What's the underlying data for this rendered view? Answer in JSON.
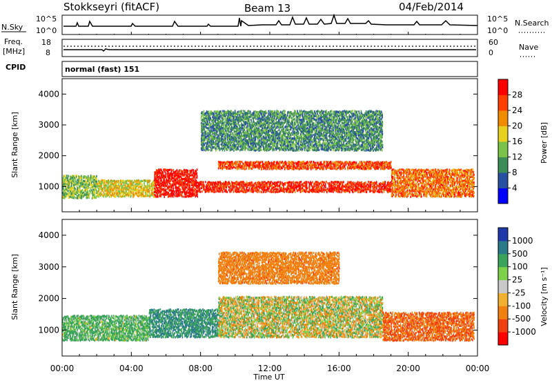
{
  "header": {
    "station": "Stokkseyri (fitACF)",
    "beam": "Beam 13",
    "date": "04/Feb/2014"
  },
  "noise_panel": {
    "left_label": "N.Sky",
    "right_label": "N.Search",
    "left_ticks": [
      "10^5",
      "10^0"
    ],
    "right_ticks": [
      "10^5",
      "10^0"
    ]
  },
  "freq_panel": {
    "left_label_1": "Freq.",
    "left_label_2": "[MHz]",
    "right_label": "Nave",
    "left_ticks": [
      "18",
      "8"
    ],
    "right_ticks": [
      "60",
      "0"
    ]
  },
  "cpid_panel": {
    "label": "CPID",
    "value": "normal (fast) 151"
  },
  "power_panel": {
    "ylabel": "Slant Range [km]",
    "yticks": [
      "4000",
      "3000",
      "2000",
      "1000"
    ],
    "colorbar_label": "Power [dB]",
    "colorbar_ticks": [
      "28",
      "24",
      "20",
      "16",
      "12",
      "8",
      "4"
    ],
    "colors": [
      "#0000ff",
      "#2850a0",
      "#3c8c5a",
      "#7ac24a",
      "#e8d020",
      "#f08c00",
      "#ff4000",
      "#ff0000"
    ]
  },
  "velocity_panel": {
    "ylabel": "Slant Range [km]",
    "yticks": [
      "4000",
      "3000",
      "2000",
      "1000"
    ],
    "colorbar_label": "Velocity [m s⁻¹]",
    "colorbar_ticks": [
      "1000",
      "500",
      "100",
      "25",
      "-25",
      "-100",
      "-500",
      "-1000"
    ],
    "colors": [
      "#1f3aa8",
      "#2a7a8a",
      "#3aa25a",
      "#7cd04a",
      "#c8c8c8",
      "#f0b030",
      "#f08010",
      "#f04010",
      "#ff0000"
    ]
  },
  "xaxis": {
    "label": "Time UT",
    "ticks": [
      "00:00",
      "04:00",
      "08:00",
      "12:00",
      "16:00",
      "20:00",
      "00:00"
    ]
  },
  "chart_data": [
    {
      "type": "heatmap",
      "title": "Power",
      "x_range_hours": [
        0,
        24
      ],
      "y_range_km": [
        180,
        4500
      ],
      "colorbar_range_db": [
        0,
        32
      ],
      "bands": [
        {
          "t_start": 0.0,
          "t_end": 2.0,
          "range_lo_km": 650,
          "range_hi_km": 1400,
          "value_db": 14
        },
        {
          "t_start": 2.0,
          "t_end": 5.3,
          "range_lo_km": 700,
          "range_hi_km": 1250,
          "value_db": 18
        },
        {
          "t_start": 5.3,
          "t_end": 7.8,
          "range_lo_km": 700,
          "range_hi_km": 1600,
          "value_db": 30
        },
        {
          "t_start": 7.8,
          "t_end": 19.0,
          "range_lo_km": 850,
          "range_hi_km": 1200,
          "value_db": 28
        },
        {
          "t_start": 9.0,
          "t_end": 19.0,
          "range_lo_km": 1600,
          "range_hi_km": 1850,
          "value_db": 26
        },
        {
          "t_start": 8.0,
          "t_end": 18.5,
          "range_lo_km": 2200,
          "range_hi_km": 3500,
          "value_db": 10
        },
        {
          "t_start": 19.0,
          "t_end": 23.8,
          "range_lo_km": 700,
          "range_hi_km": 1600,
          "value_db": 24
        }
      ]
    },
    {
      "type": "heatmap",
      "title": "Velocity",
      "x_range_hours": [
        0,
        24
      ],
      "y_range_km": [
        180,
        4500
      ],
      "colorbar_range_ms": [
        -1000,
        1000
      ],
      "bands": [
        {
          "t_start": 0.0,
          "t_end": 5.0,
          "range_lo_km": 700,
          "range_hi_km": 1500,
          "value_ms": 100
        },
        {
          "t_start": 5.0,
          "t_end": 9.0,
          "range_lo_km": 800,
          "range_hi_km": 1700,
          "value_ms": 300
        },
        {
          "t_start": 9.0,
          "t_end": 18.5,
          "range_lo_km": 800,
          "range_hi_km": 2100,
          "value_ms": 0
        },
        {
          "t_start": 18.5,
          "t_end": 23.8,
          "range_lo_km": 700,
          "range_hi_km": 1600,
          "value_ms": -300
        },
        {
          "t_start": 9.0,
          "t_end": 16.0,
          "range_lo_km": 2500,
          "range_hi_km": 3500,
          "value_ms": -200
        }
      ]
    }
  ]
}
